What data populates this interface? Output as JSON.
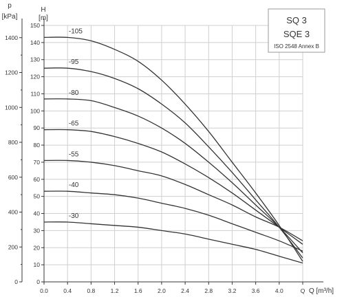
{
  "chart_data": {
    "type": "line",
    "title": "",
    "xlabel": "Q [m³/h]",
    "ylabel": "H [m]",
    "ylabel_secondary": "p [kPa]",
    "xlim": [
      0,
      4.4
    ],
    "ylim": [
      0,
      150
    ],
    "ylim_secondary_kpa": [
      0,
      1470
    ],
    "x_ticks": [
      "0.0",
      "0.4",
      "0.8",
      "1.2",
      "1.6",
      "2.0",
      "2.4",
      "2.8",
      "3.2",
      "3.6",
      "4.0",
      "Q"
    ],
    "y_ticks": [
      0,
      10,
      20,
      30,
      40,
      50,
      60,
      70,
      80,
      90,
      100,
      110,
      120,
      130,
      140,
      150
    ],
    "y2_ticks": [
      0,
      200,
      400,
      600,
      800,
      1000,
      1200,
      1400
    ],
    "grid": true,
    "legend": "none",
    "info_box": {
      "line1": "SQ 3",
      "line2": "SQE 3",
      "line3": "ISO 2548 Annex B"
    },
    "series": [
      {
        "name": "-105",
        "x": [
          0,
          0.4,
          0.8,
          1.2,
          1.6,
          2.0,
          2.4,
          2.8,
          3.2,
          3.6,
          4.0,
          4.4
        ],
        "values": [
          143,
          143,
          141,
          136,
          129,
          118,
          104,
          88,
          70,
          52,
          33,
          12
        ]
      },
      {
        "name": "-95",
        "x": [
          0,
          0.4,
          0.8,
          1.2,
          1.6,
          2.0,
          2.4,
          2.8,
          3.2,
          3.6,
          4.0,
          4.4
        ],
        "values": [
          125,
          125,
          123,
          119,
          113,
          104,
          93,
          79,
          64,
          48,
          32,
          14
        ]
      },
      {
        "name": "-80",
        "x": [
          0,
          0.4,
          0.8,
          1.2,
          1.6,
          2.0,
          2.4,
          2.8,
          3.2,
          3.6,
          4.0,
          4.4
        ],
        "values": [
          107,
          107,
          106,
          102,
          97,
          90,
          81,
          70,
          58,
          45,
          32,
          17
        ]
      },
      {
        "name": "-65",
        "x": [
          0,
          0.4,
          0.8,
          1.2,
          1.6,
          2.0,
          2.4,
          2.8,
          3.2,
          3.6,
          4.0,
          4.4
        ],
        "values": [
          89,
          89,
          88,
          85,
          81,
          76,
          69,
          61,
          52,
          42,
          32,
          22
        ]
      },
      {
        "name": "-55",
        "x": [
          0,
          0.4,
          0.8,
          1.2,
          1.6,
          2.0,
          2.4,
          2.8,
          3.2,
          3.6,
          4.0,
          4.4
        ],
        "values": [
          71,
          71,
          70,
          68,
          65,
          62,
          57,
          51,
          45,
          38,
          32,
          24
        ]
      },
      {
        "name": "-40",
        "x": [
          0,
          0.4,
          0.8,
          1.2,
          1.6,
          2.0,
          2.4,
          2.8,
          3.2,
          3.6,
          4.0,
          4.4
        ],
        "values": [
          53,
          53,
          52,
          51,
          49,
          46,
          43,
          39,
          34,
          29,
          24,
          18
        ]
      },
      {
        "name": "-30",
        "x": [
          0,
          0.4,
          0.8,
          1.2,
          1.6,
          2.0,
          2.4,
          2.8,
          3.2,
          3.6,
          4.0,
          4.4
        ],
        "values": [
          35,
          35,
          34,
          33,
          32,
          30,
          28,
          25,
          22,
          19,
          15,
          11
        ]
      }
    ],
    "series_colors": [
      "#333333"
    ]
  }
}
